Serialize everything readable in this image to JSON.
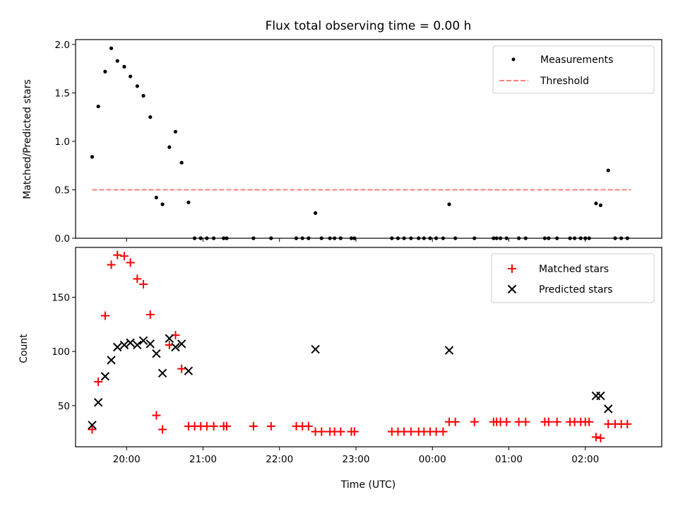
{
  "chart_data": [
    {
      "type": "scatter",
      "title": "Flux total observing time = 0.00 h",
      "xlabel": "",
      "ylabel": "Matched/Predicted stars",
      "xlim": [
        19.333,
        27.0
      ],
      "ylim": [
        0,
        2.05
      ],
      "yticks": [
        0.0,
        0.5,
        1.0,
        1.5,
        2.0
      ],
      "ytick_labels": [
        "0.0",
        "0.5",
        "1.0",
        "1.5",
        "2.0"
      ],
      "xticks": [
        20,
        21,
        22,
        23,
        24,
        25,
        26
      ],
      "show_xtick_labels": false,
      "grid": false,
      "legend": "upper right",
      "series": [
        {
          "name": "Measurements",
          "kind": "dots",
          "color": "#000000",
          "points": [
            [
              19.55,
              0.84
            ],
            [
              19.63,
              1.36
            ],
            [
              19.72,
              1.72
            ],
            [
              19.8,
              1.96
            ],
            [
              19.88,
              1.83
            ],
            [
              19.97,
              1.77
            ],
            [
              20.05,
              1.67
            ],
            [
              20.14,
              1.57
            ],
            [
              20.22,
              1.47
            ],
            [
              20.31,
              1.25
            ],
            [
              20.39,
              0.42
            ],
            [
              20.47,
              0.35
            ],
            [
              20.56,
              0.94
            ],
            [
              20.64,
              1.1
            ],
            [
              20.72,
              0.78
            ],
            [
              20.81,
              0.37
            ],
            [
              20.89,
              0.0
            ],
            [
              20.97,
              0.0
            ],
            [
              21.05,
              0.0
            ],
            [
              21.14,
              0.0
            ],
            [
              21.27,
              0.0
            ],
            [
              21.31,
              0.0
            ],
            [
              21.66,
              0.0
            ],
            [
              21.89,
              0.0
            ],
            [
              22.22,
              0.0
            ],
            [
              22.3,
              0.0
            ],
            [
              22.38,
              0.0
            ],
            [
              22.47,
              0.26
            ],
            [
              22.55,
              0.0
            ],
            [
              22.66,
              0.0
            ],
            [
              22.72,
              0.0
            ],
            [
              22.8,
              0.0
            ],
            [
              22.94,
              0.0
            ],
            [
              22.98,
              0.0
            ],
            [
              23.47,
              0.0
            ],
            [
              23.55,
              0.0
            ],
            [
              23.63,
              0.0
            ],
            [
              23.72,
              0.0
            ],
            [
              23.82,
              0.0
            ],
            [
              23.89,
              0.0
            ],
            [
              23.97,
              0.0
            ],
            [
              24.05,
              0.0
            ],
            [
              24.14,
              0.0
            ],
            [
              24.22,
              0.35
            ],
            [
              24.3,
              0.0
            ],
            [
              24.55,
              0.0
            ],
            [
              24.8,
              0.0
            ],
            [
              24.84,
              0.0
            ],
            [
              24.89,
              0.0
            ],
            [
              24.97,
              0.0
            ],
            [
              25.13,
              0.0
            ],
            [
              25.22,
              0.0
            ],
            [
              25.47,
              0.0
            ],
            [
              25.52,
              0.0
            ],
            [
              25.63,
              0.0
            ],
            [
              25.8,
              0.0
            ],
            [
              25.86,
              0.0
            ],
            [
              25.94,
              0.0
            ],
            [
              26.0,
              0.0
            ],
            [
              26.05,
              0.0
            ],
            [
              26.14,
              0.36
            ],
            [
              26.2,
              0.34
            ],
            [
              26.3,
              0.7
            ],
            [
              26.39,
              0.0
            ],
            [
              26.47,
              0.0
            ],
            [
              26.55,
              0.0
            ]
          ]
        },
        {
          "name": "Threshold",
          "kind": "dashed-line",
          "color": "#ff7f7f",
          "points": [
            [
              19.55,
              0.5
            ],
            [
              26.6,
              0.5
            ]
          ]
        }
      ]
    },
    {
      "type": "scatter",
      "title": "",
      "xlabel": "Time (UTC)",
      "ylabel": "Count",
      "xlim": [
        19.333,
        27.0
      ],
      "ylim": [
        12,
        196
      ],
      "yticks": [
        50,
        100,
        150
      ],
      "ytick_labels": [
        "50",
        "100",
        "150"
      ],
      "xticks": [
        20,
        21,
        22,
        23,
        24,
        25,
        26
      ],
      "xtick_labels": [
        "20:00",
        "21:00",
        "22:00",
        "23:00",
        "00:00",
        "01:00",
        "02:00"
      ],
      "grid": false,
      "legend": "upper right",
      "series": [
        {
          "name": "Matched stars",
          "kind": "plus",
          "color": "#ff0000",
          "points": [
            [
              19.55,
              28
            ],
            [
              19.63,
              72
            ],
            [
              19.72,
              133
            ],
            [
              19.8,
              180
            ],
            [
              19.88,
              189
            ],
            [
              19.97,
              188
            ],
            [
              20.05,
              182
            ],
            [
              20.14,
              167
            ],
            [
              20.22,
              162
            ],
            [
              20.31,
              134
            ],
            [
              20.39,
              41
            ],
            [
              20.47,
              28
            ],
            [
              20.56,
              106
            ],
            [
              20.64,
              115
            ],
            [
              20.72,
              84
            ],
            [
              20.81,
              31
            ],
            [
              20.89,
              31
            ],
            [
              20.97,
              31
            ],
            [
              21.05,
              31
            ],
            [
              21.14,
              31
            ],
            [
              21.27,
              31
            ],
            [
              21.31,
              31
            ],
            [
              21.66,
              31
            ],
            [
              21.89,
              31
            ],
            [
              22.22,
              31
            ],
            [
              22.3,
              31
            ],
            [
              22.38,
              31
            ],
            [
              22.47,
              26
            ],
            [
              22.55,
              26
            ],
            [
              22.66,
              26
            ],
            [
              22.72,
              26
            ],
            [
              22.8,
              26
            ],
            [
              22.94,
              26
            ],
            [
              22.98,
              26
            ],
            [
              23.47,
              26
            ],
            [
              23.55,
              26
            ],
            [
              23.63,
              26
            ],
            [
              23.72,
              26
            ],
            [
              23.82,
              26
            ],
            [
              23.89,
              26
            ],
            [
              23.97,
              26
            ],
            [
              24.05,
              26
            ],
            [
              24.14,
              26
            ],
            [
              24.22,
              35
            ],
            [
              24.3,
              35
            ],
            [
              24.55,
              35
            ],
            [
              24.8,
              35
            ],
            [
              24.84,
              35
            ],
            [
              24.89,
              35
            ],
            [
              24.97,
              35
            ],
            [
              25.13,
              35
            ],
            [
              25.22,
              35
            ],
            [
              25.47,
              35
            ],
            [
              25.52,
              35
            ],
            [
              25.63,
              35
            ],
            [
              25.8,
              35
            ],
            [
              25.86,
              35
            ],
            [
              25.94,
              35
            ],
            [
              26.0,
              35
            ],
            [
              26.05,
              35
            ],
            [
              26.14,
              21
            ],
            [
              26.2,
              20
            ],
            [
              26.3,
              33
            ],
            [
              26.39,
              33
            ],
            [
              26.47,
              33
            ],
            [
              26.55,
              33
            ]
          ]
        },
        {
          "name": "Predicted stars",
          "kind": "cross",
          "color": "#000000",
          "points": [
            [
              19.55,
              32
            ],
            [
              19.63,
              53
            ],
            [
              19.72,
              77
            ],
            [
              19.8,
              92
            ],
            [
              19.88,
              104
            ],
            [
              19.97,
              106
            ],
            [
              20.05,
              108
            ],
            [
              20.14,
              106
            ],
            [
              20.22,
              110
            ],
            [
              20.31,
              107
            ],
            [
              20.39,
              98
            ],
            [
              20.47,
              80
            ],
            [
              20.56,
              112
            ],
            [
              20.64,
              104
            ],
            [
              20.72,
              107
            ],
            [
              20.81,
              82
            ],
            [
              22.47,
              102
            ],
            [
              24.22,
              101
            ],
            [
              26.14,
              59
            ],
            [
              26.2,
              59
            ],
            [
              26.3,
              47
            ]
          ]
        }
      ]
    }
  ]
}
